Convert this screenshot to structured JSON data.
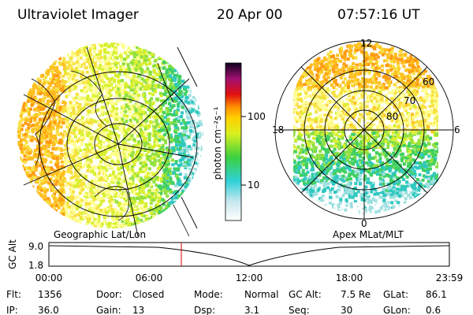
{
  "header": {
    "title": "Ultraviolet Imager",
    "date": "20 Apr 00",
    "time": "07:57:16 UT"
  },
  "left_panel": {
    "label": "Geographic Lat/Lon"
  },
  "colorbar": {
    "label": "photon cm⁻²s⁻¹",
    "ticks": [
      "100",
      "10"
    ]
  },
  "right_panel": {
    "label": "Apex MLat/MLT",
    "mlt_labels": [
      "12",
      "18",
      "6",
      "0"
    ],
    "mlat_labels": [
      "60",
      "70",
      "80"
    ]
  },
  "timeline": {
    "axis_label": "GC Alt",
    "y_ticks": [
      "9.0",
      "1.8"
    ],
    "x_ticks": [
      "00:00",
      "06:00",
      "12:00",
      "18:00",
      "23:59"
    ]
  },
  "footer": [
    [
      {
        "label": "Flt:",
        "value": "1356"
      },
      {
        "label": "Door:",
        "value": "Closed"
      },
      {
        "label": "Mode:",
        "value": "Normal"
      },
      {
        "label": "GC Alt:",
        "value": "7.5 Re"
      },
      {
        "label": "GLat:",
        "value": "86.1"
      }
    ],
    [
      {
        "label": "IP:",
        "value": "36.0"
      },
      {
        "label": "Gain:",
        "value": "13"
      },
      {
        "label": "Dsp:",
        "value": "3.1"
      },
      {
        "label": "Seq:",
        "value": "30"
      },
      {
        "label": "GLon:",
        "value": "0.6"
      }
    ]
  ]
}
